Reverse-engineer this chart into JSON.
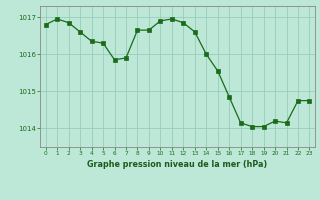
{
  "x": [
    0,
    1,
    2,
    3,
    4,
    5,
    6,
    7,
    8,
    9,
    10,
    11,
    12,
    13,
    14,
    15,
    16,
    17,
    18,
    19,
    20,
    21,
    22,
    23
  ],
  "y": [
    1016.8,
    1016.95,
    1016.85,
    1016.6,
    1016.35,
    1016.3,
    1015.85,
    1015.9,
    1016.65,
    1016.65,
    1016.9,
    1016.95,
    1016.85,
    1016.6,
    1016.0,
    1015.55,
    1014.85,
    1014.15,
    1014.05,
    1014.05,
    1014.2,
    1014.15,
    1014.75,
    1014.75
  ],
  "line_color": "#1a6b1a",
  "marker_color": "#1a6b1a",
  "bg_color": "#bde8d8",
  "grid_color": "#99ccbb",
  "axis_color": "#888888",
  "xlabel": "Graphe pression niveau de la mer (hPa)",
  "xlabel_color": "#1a5c1a",
  "ytick_color": "#1a6b1a",
  "xtick_color": "#1a6b1a",
  "ylim": [
    1013.5,
    1017.3
  ],
  "yticks": [
    1014,
    1015,
    1016,
    1017
  ],
  "xticks": [
    0,
    1,
    2,
    3,
    4,
    5,
    6,
    7,
    8,
    9,
    10,
    11,
    12,
    13,
    14,
    15,
    16,
    17,
    18,
    19,
    20,
    21,
    22,
    23
  ]
}
